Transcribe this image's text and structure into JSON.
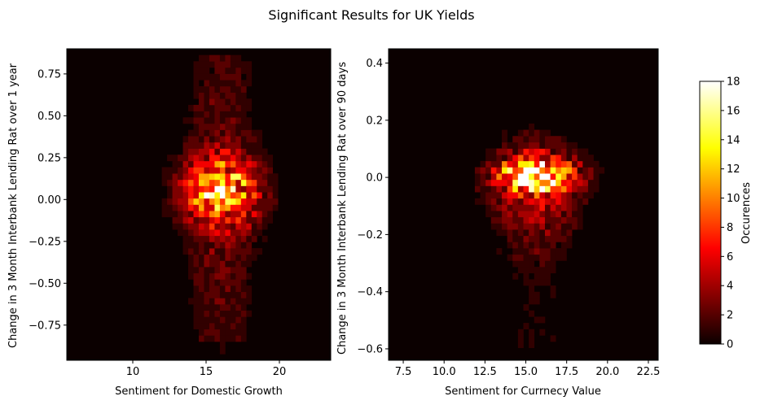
{
  "chart_data": {
    "title": "Significant Results for UK Yields",
    "type": "heatmap",
    "colormap": "hot",
    "colorbar": {
      "label": "Occurences",
      "min": 0,
      "max": 18,
      "ticks": [
        "0",
        "2",
        "4",
        "6",
        "8",
        "10",
        "12",
        "14",
        "16",
        "18"
      ]
    },
    "panels": [
      {
        "xlabel": "Sentiment for Domestic Growth",
        "ylabel": "Change in 3 Month Interbank Lending Rat over 1 year",
        "xlim": [
          5.5,
          23.5
        ],
        "ylim": [
          -0.96,
          0.9
        ],
        "xticks": [
          {
            "value": 10,
            "label": "10"
          },
          {
            "value": 15,
            "label": "15"
          },
          {
            "value": 20,
            "label": "20"
          }
        ],
        "yticks": [
          {
            "value": 0.75,
            "label": "0.75"
          },
          {
            "value": 0.5,
            "label": "0.50"
          },
          {
            "value": 0.25,
            "label": "0.25"
          },
          {
            "value": 0.0,
            "label": "0.00"
          },
          {
            "value": -0.25,
            "label": "−0.25"
          },
          {
            "value": -0.5,
            "label": "−0.50"
          },
          {
            "value": -0.75,
            "label": "−0.75"
          }
        ],
        "bins": [
          50,
          50
        ],
        "grid": false
      },
      {
        "xlabel": "Sentiment for Currnecy Value",
        "ylabel": "Change in 3 Month Interbank Lending Rat over 90 days",
        "xlim": [
          6.6,
          23.1
        ],
        "ylim": [
          -0.64,
          0.45
        ],
        "xticks": [
          {
            "value": 7.5,
            "label": "7.5"
          },
          {
            "value": 10.0,
            "label": "10.0"
          },
          {
            "value": 12.5,
            "label": "12.5"
          },
          {
            "value": 15.0,
            "label": "15.0"
          },
          {
            "value": 17.5,
            "label": "17.5"
          },
          {
            "value": 20.0,
            "label": "20.0"
          },
          {
            "value": 22.5,
            "label": "22.5"
          }
        ],
        "yticks": [
          {
            "value": 0.4,
            "label": "0.4"
          },
          {
            "value": 0.2,
            "label": "0.2"
          },
          {
            "value": 0.0,
            "label": "0.0"
          },
          {
            "value": -0.2,
            "label": "−0.2"
          },
          {
            "value": -0.4,
            "label": "−0.4"
          },
          {
            "value": -0.6,
            "label": "−0.6"
          }
        ],
        "bins": [
          50,
          50
        ],
        "grid": false
      }
    ]
  }
}
